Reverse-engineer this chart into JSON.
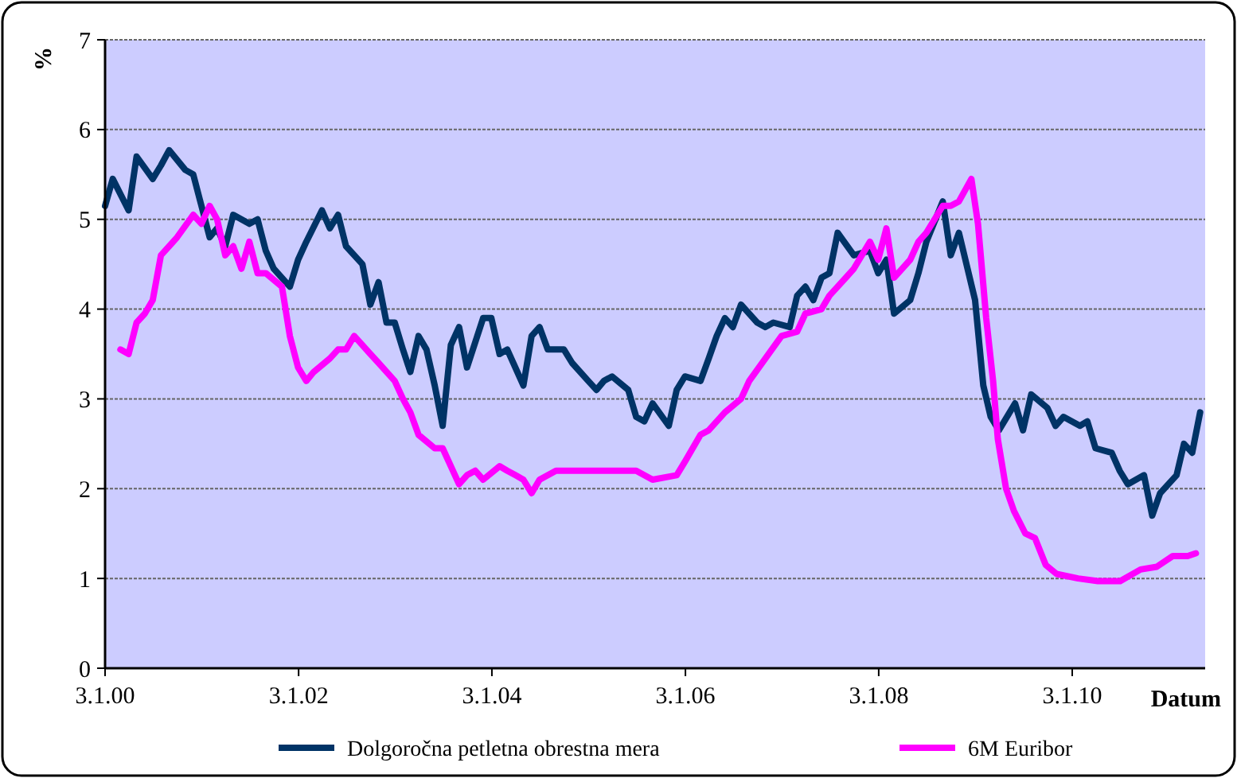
{
  "chart_data": {
    "type": "line",
    "xlabel": "Datum",
    "ylabel": "%",
    "xlim": [
      "2000-01-03",
      "2011-05-20"
    ],
    "ylim": [
      0,
      7
    ],
    "yticks": [
      0,
      1,
      2,
      3,
      4,
      5,
      6,
      7
    ],
    "xticks": [
      {
        "value": "2000-01-03",
        "label": "3.1.00"
      },
      {
        "value": "2002-01-03",
        "label": "3.1.02"
      },
      {
        "value": "2004-01-03",
        "label": "3.1.04"
      },
      {
        "value": "2006-01-03",
        "label": "3.1.06"
      },
      {
        "value": "2008-01-03",
        "label": "3.1.08"
      },
      {
        "value": "2010-01-03",
        "label": "3.1.10"
      }
    ],
    "grid": "y",
    "legend": "bottom",
    "marker": "none",
    "line_style": "solid",
    "series": [
      {
        "name": "Dolgoročna petletna obrestna mera",
        "color": "#003366",
        "x": [
          "2000-01-03",
          "2000-02",
          "2000-04",
          "2000-05",
          "2000-07",
          "2000-08",
          "2000-09",
          "2000-11",
          "2000-12",
          "2001-01",
          "2001-02",
          "2001-03",
          "2001-04",
          "2001-05",
          "2001-07",
          "2001-08",
          "2001-09",
          "2001-10",
          "2001-12",
          "2002-01",
          "2002-02",
          "2002-04",
          "2002-05",
          "2002-06",
          "2002-07",
          "2002-09",
          "2002-10",
          "2002-11",
          "2002-12",
          "2003-01",
          "2003-02",
          "2003-03",
          "2003-04",
          "2003-05",
          "2003-06",
          "2003-07",
          "2003-08",
          "2003-09",
          "2003-10",
          "2003-12",
          "2004-01",
          "2004-02",
          "2004-03",
          "2004-05",
          "2004-06",
          "2004-07",
          "2004-08",
          "2004-10",
          "2004-11",
          "2005-01",
          "2005-02",
          "2005-03",
          "2005-04",
          "2005-06",
          "2005-07",
          "2005-08",
          "2005-09",
          "2005-11",
          "2005-12",
          "2006-01",
          "2006-03",
          "2006-04",
          "2006-05",
          "2006-06",
          "2006-07",
          "2006-08",
          "2006-10",
          "2006-11",
          "2006-12",
          "2007-02",
          "2007-03",
          "2007-04",
          "2007-05",
          "2007-06",
          "2007-07",
          "2007-08",
          "2007-10",
          "2007-12",
          "2008-01",
          "2008-02",
          "2008-03",
          "2008-05",
          "2008-06",
          "2008-07",
          "2008-09",
          "2008-10",
          "2008-11",
          "2009-01",
          "2009-02",
          "2009-03",
          "2009-04",
          "2009-06",
          "2009-07",
          "2009-08",
          "2009-10",
          "2009-11",
          "2009-12",
          "2010-02",
          "2010-03",
          "2010-04",
          "2010-06",
          "2010-07",
          "2010-08",
          "2010-10",
          "2010-11",
          "2010-12",
          "2011-02",
          "2011-03",
          "2011-04",
          "2011-05"
        ],
        "values": [
          5.15,
          5.45,
          5.1,
          5.7,
          5.45,
          5.6,
          5.77,
          5.55,
          5.5,
          5.15,
          4.8,
          4.9,
          4.7,
          5.05,
          4.95,
          5.0,
          4.65,
          4.45,
          4.25,
          4.55,
          4.75,
          5.1,
          4.9,
          5.05,
          4.7,
          4.5,
          4.05,
          4.3,
          3.85,
          3.85,
          3.55,
          3.3,
          3.7,
          3.55,
          3.15,
          2.7,
          3.6,
          3.8,
          3.35,
          3.9,
          3.9,
          3.5,
          3.55,
          3.15,
          3.7,
          3.8,
          3.55,
          3.55,
          3.4,
          3.2,
          3.1,
          3.2,
          3.25,
          3.1,
          2.8,
          2.75,
          2.95,
          2.7,
          3.1,
          3.25,
          3.2,
          3.45,
          3.7,
          3.9,
          3.8,
          4.05,
          3.85,
          3.8,
          3.85,
          3.8,
          4.15,
          4.25,
          4.1,
          4.35,
          4.4,
          4.85,
          4.6,
          4.65,
          4.4,
          4.55,
          3.95,
          4.1,
          4.4,
          4.75,
          5.2,
          4.6,
          4.85,
          4.1,
          3.15,
          2.8,
          2.65,
          2.95,
          2.65,
          3.05,
          2.9,
          2.7,
          2.8,
          2.7,
          2.75,
          2.45,
          2.4,
          2.2,
          2.05,
          2.15,
          1.7,
          1.95,
          2.15,
          2.5,
          2.4,
          2.85
        ]
      },
      {
        "name": "6M Euribor",
        "color": "#ff00ff",
        "x": [
          "2000-03",
          "2000-04",
          "2000-05",
          "2000-06",
          "2000-07",
          "2000-08",
          "2000-09",
          "2000-10",
          "2000-12",
          "2001-01",
          "2001-02",
          "2001-03",
          "2001-04",
          "2001-05",
          "2001-06",
          "2001-07",
          "2001-08",
          "2001-09",
          "2001-11",
          "2001-12",
          "2002-01",
          "2002-02",
          "2002-03",
          "2002-05",
          "2002-06",
          "2002-07",
          "2002-08",
          "2002-10",
          "2002-11",
          "2003-01",
          "2003-02",
          "2003-03",
          "2003-04",
          "2003-06",
          "2003-07",
          "2003-09",
          "2003-10",
          "2003-11",
          "2003-12",
          "2004-02",
          "2004-03",
          "2004-04",
          "2004-05",
          "2004-06",
          "2004-07",
          "2004-09",
          "2004-11",
          "2005-01",
          "2005-04",
          "2005-07",
          "2005-09",
          "2005-12",
          "2006-01",
          "2006-03",
          "2006-04",
          "2006-06",
          "2006-08",
          "2006-09",
          "2006-11",
          "2007-01",
          "2007-03",
          "2007-04",
          "2007-06",
          "2007-07",
          "2007-09",
          "2007-10",
          "2007-12",
          "2008-01",
          "2008-02",
          "2008-03",
          "2008-05",
          "2008-06",
          "2008-07",
          "2008-09",
          "2008-10",
          "2008-11",
          "2008-12-18",
          "2009-01-12",
          "2009-02-12",
          "2009-03-10",
          "2009-03-28",
          "2009-04-28",
          "2009-05-28",
          "2009-07-10",
          "2009-08-15",
          "2009-09-25",
          "2009-11-05",
          "2010-01-25",
          "2010-04-10",
          "2010-07-03",
          "2010-09-18",
          "2010-11-18",
          "2011-01-18",
          "2011-03-15",
          "2011-04-15"
        ],
        "values": [
          3.55,
          3.5,
          3.85,
          3.95,
          4.1,
          4.6,
          4.7,
          4.8,
          5.05,
          4.95,
          5.15,
          5.0,
          4.6,
          4.7,
          4.45,
          4.75,
          4.4,
          4.4,
          4.25,
          3.7,
          3.35,
          3.2,
          3.3,
          3.45,
          3.55,
          3.55,
          3.7,
          3.5,
          3.4,
          3.2,
          3.0,
          2.85,
          2.6,
          2.45,
          2.45,
          2.05,
          2.15,
          2.2,
          2.1,
          2.25,
          2.2,
          2.15,
          2.1,
          1.95,
          2.1,
          2.2,
          2.2,
          2.2,
          2.2,
          2.2,
          2.1,
          2.15,
          2.3,
          2.6,
          2.65,
          2.85,
          3.0,
          3.2,
          3.45,
          3.7,
          3.75,
          3.95,
          4.0,
          4.15,
          4.35,
          4.45,
          4.75,
          4.55,
          4.9,
          4.35,
          4.55,
          4.75,
          4.85,
          5.15,
          5.15,
          5.2,
          5.45,
          4.95,
          3.9,
          3.2,
          2.55,
          2.0,
          1.75,
          1.5,
          1.45,
          1.15,
          1.05,
          1.0,
          0.97,
          0.97,
          1.1,
          1.13,
          1.25,
          1.25,
          1.28
        ]
      }
    ]
  }
}
